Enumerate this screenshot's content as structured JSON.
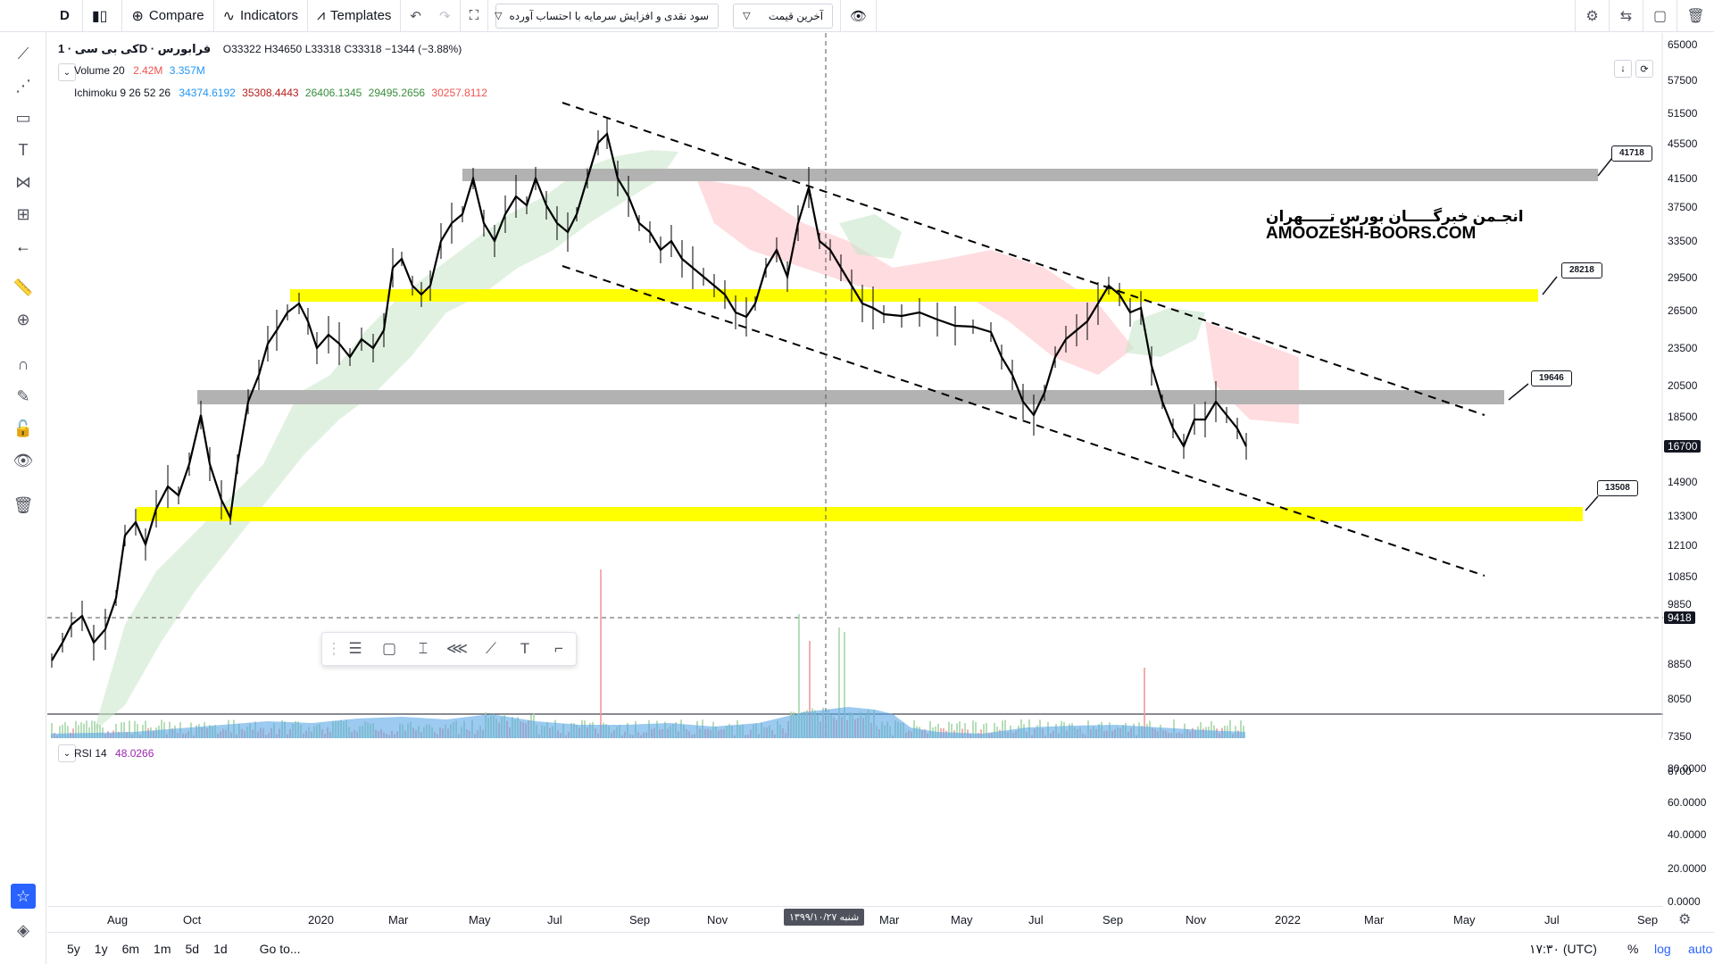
{
  "toolbar": {
    "interval": "D",
    "compare": "Compare",
    "indicators": "Indicators",
    "templates": "Templates",
    "dropdown1": "سود نقدی و افزایش سرمایه با احتساب آورده",
    "dropdown2": "آخرین قیمت"
  },
  "legend": {
    "symbol": "کی بی سی · 1D · فرابورس",
    "open": "O33322",
    "high": "H34650",
    "low": "L33318",
    "close": "C33318",
    "change": "−1344 (−3.88%)",
    "volume_label": "Volume 20",
    "volume_v1": "2.42M",
    "volume_v2": "3.357M",
    "ichimoku_label": "Ichimoku 9 26 52 26",
    "ichimoku_values": [
      "34374.6192",
      "35308.4443",
      "26406.1345",
      "29495.2656",
      "30257.8112"
    ],
    "rsi_label": "RSI 14",
    "rsi_value": "48.0266"
  },
  "watermark": {
    "line1": "انجـمن خبرگـــــان بورس تـــــهران",
    "line2": "AMOOZESH-BOORS.COM"
  },
  "callouts": [
    "41718",
    "28218",
    "19646",
    "13508"
  ],
  "price_axis": [
    "65000",
    "57500",
    "51500",
    "45500",
    "41500",
    "37500",
    "33500",
    "29500",
    "26500",
    "23500",
    "20500",
    "18500",
    "16700",
    "14900",
    "13300",
    "12100",
    "10850",
    "9850",
    "9418",
    "8850",
    "8050",
    "7350",
    "6700"
  ],
  "current_price": "16700",
  "crosshair_price": "9418",
  "rsi_axis": [
    "80.0000",
    "60.0000",
    "40.0000",
    "20.0000",
    "0.0000"
  ],
  "time_axis": [
    "Aug",
    "Oct",
    "2020",
    "Mar",
    "May",
    "Jul",
    "Sep",
    "Nov",
    "Mar",
    "May",
    "Jul",
    "Sep",
    "Nov",
    "2022",
    "Mar",
    "May",
    "Jul",
    "Sep"
  ],
  "crosshair_date": "شنبه ۱۳۹۹/۱۰/۲۷",
  "bottom": {
    "ranges": [
      "5y",
      "1y",
      "6m",
      "1m",
      "5d",
      "1d"
    ],
    "goto": "Go to...",
    "time": "۱۷:۳۰ (UTC)",
    "percent": "%",
    "log": "log",
    "auto": "auto"
  },
  "colors": {
    "up": "#000000",
    "down": "#000000",
    "volume": "#5aa7e6",
    "rsi": "#9c27b0",
    "rsi_band": "#f3e5f5",
    "yellow": "#ffff00",
    "grey": "#b2b2b2",
    "cloud_green": "#c8e6c9",
    "cloud_red": "#ffcdd2"
  }
}
